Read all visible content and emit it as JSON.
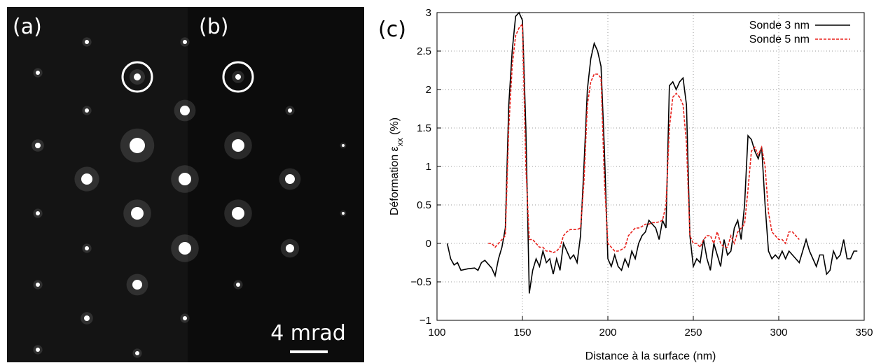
{
  "panels": {
    "a": "(a)",
    "b": "(b)",
    "scale": "4 mrad"
  },
  "chart_data": {
    "type": "line",
    "panel_label": "(c)",
    "xlabel": "Distance à la surface (nm)",
    "ylabel": [
      "Déformation ε",
      "xx",
      " (%)"
    ],
    "xlim": [
      100,
      350
    ],
    "xticks": [
      100,
      150,
      200,
      250,
      300,
      350
    ],
    "ylim": [
      -1,
      3
    ],
    "yticks": [
      {
        "value": -1,
        "label": "−1"
      },
      {
        "value": -0.5,
        "label": "−0.5"
      },
      0,
      0.5,
      1,
      1.5,
      2,
      2.5,
      3
    ],
    "grid": true,
    "legend": "top-right",
    "series": [
      {
        "name": "Sonde 3 nm",
        "color": "#000000",
        "dash": false,
        "x": [
          106,
          108,
          110,
          112,
          114,
          118,
          122,
          124,
          126,
          128,
          130,
          132,
          134,
          136,
          138,
          140,
          142,
          144,
          146,
          148,
          150,
          152,
          154,
          156,
          158,
          160,
          162,
          164,
          166,
          168,
          170,
          172,
          174,
          176,
          178,
          180,
          182,
          184,
          186,
          188,
          190,
          192,
          194,
          196,
          198,
          200,
          202,
          204,
          206,
          208,
          210,
          212,
          214,
          216,
          218,
          220,
          222,
          224,
          226,
          228,
          230,
          232,
          234,
          236,
          238,
          240,
          242,
          244,
          246,
          248,
          250,
          252,
          254,
          256,
          258,
          260,
          262,
          264,
          266,
          268,
          270,
          272,
          274,
          276,
          278,
          280,
          282,
          284,
          286,
          288,
          290,
          292,
          294,
          296,
          298,
          300,
          302,
          304,
          306,
          308,
          310,
          312,
          314,
          316,
          318,
          320,
          322,
          324,
          326,
          328,
          330,
          332,
          334,
          336,
          338,
          340,
          342,
          344,
          346
        ],
        "values": [
          0,
          -0.2,
          -0.28,
          -0.25,
          -0.35,
          -0.33,
          -0.32,
          -0.35,
          -0.25,
          -0.22,
          -0.27,
          -0.32,
          -0.42,
          -0.2,
          -0.05,
          0.2,
          1.8,
          2.5,
          2.95,
          3.0,
          2.9,
          1.5,
          -0.65,
          -0.35,
          -0.2,
          -0.3,
          -0.1,
          -0.25,
          -0.2,
          -0.4,
          -0.2,
          -0.35,
          0,
          -0.1,
          -0.2,
          -0.15,
          -0.25,
          0.1,
          1.0,
          2.0,
          2.4,
          2.6,
          2.5,
          2.3,
          1.2,
          -0.2,
          -0.3,
          -0.15,
          -0.3,
          -0.35,
          -0.2,
          -0.3,
          -0.1,
          -0.2,
          0,
          0.1,
          0.15,
          0.3,
          0.25,
          0.2,
          0.05,
          0.3,
          0.2,
          2.05,
          2.1,
          2.0,
          2.1,
          2.15,
          1.8,
          0.1,
          -0.3,
          -0.2,
          -0.25,
          0.05,
          -0.2,
          -0.35,
          0,
          -0.15,
          -0.3,
          0.05,
          -0.15,
          -0.1,
          0.2,
          0.3,
          0.05,
          0.5,
          1.4,
          1.35,
          1.2,
          1.1,
          1.25,
          0.5,
          -0.1,
          -0.2,
          -0.15,
          -0.2,
          -0.1,
          -0.2,
          -0.1,
          -0.15,
          -0.2,
          -0.25,
          -0.1,
          0.05,
          -0.1,
          -0.2,
          -0.3,
          -0.15,
          -0.15,
          -0.4,
          -0.35,
          -0.1,
          -0.2,
          -0.15,
          0.05,
          -0.2,
          -0.2,
          -0.1,
          -0.1
        ]
      },
      {
        "name": "Sonde 5 nm",
        "color": "#e8211c",
        "dash": true,
        "x": [
          130,
          132,
          134,
          136,
          138,
          140,
          142,
          144,
          146,
          148,
          150,
          152,
          154,
          156,
          158,
          160,
          162,
          164,
          166,
          168,
          170,
          172,
          174,
          176,
          178,
          180,
          182,
          184,
          186,
          188,
          190,
          192,
          194,
          196,
          198,
          200,
          202,
          204,
          206,
          208,
          210,
          212,
          214,
          216,
          218,
          220,
          222,
          224,
          226,
          228,
          230,
          232,
          234,
          236,
          238,
          240,
          242,
          244,
          246,
          248,
          250,
          252,
          254,
          256,
          258,
          260,
          262,
          264,
          266,
          268,
          270,
          272,
          274,
          276,
          278,
          280,
          282,
          284,
          286,
          288,
          290,
          292,
          294,
          296,
          298,
          300,
          302,
          304,
          306,
          308,
          310,
          312
        ],
        "values": [
          0,
          0,
          -0.05,
          0,
          0.05,
          0.1,
          1.5,
          2.3,
          2.7,
          2.8,
          2.85,
          1.0,
          0.05,
          0.05,
          0,
          -0.05,
          -0.05,
          -0.1,
          -0.1,
          -0.12,
          -0.1,
          -0.05,
          0.1,
          0.15,
          0.18,
          0.18,
          0.18,
          0.2,
          0.8,
          1.8,
          2.1,
          2.2,
          2.2,
          2.15,
          0.8,
          0,
          -0.05,
          -0.1,
          -0.1,
          -0.08,
          -0.05,
          0.1,
          0.15,
          0.2,
          0.2,
          0.22,
          0.25,
          0.25,
          0.27,
          0.27,
          0.28,
          0.3,
          0.5,
          1.5,
          1.9,
          1.95,
          1.9,
          1.8,
          1.3,
          0.1,
          0,
          0,
          -0.05,
          0.05,
          0.1,
          0.1,
          0,
          0.15,
          0,
          -0.05,
          -0.05,
          0.1,
          0,
          0.15,
          0.2,
          0.25,
          0.7,
          1.2,
          1.25,
          1.15,
          1.25,
          1.0,
          0.4,
          0.15,
          0.1,
          0.05,
          0.05,
          0,
          0.15,
          0.15,
          0.1,
          0.05
        ]
      }
    ]
  }
}
